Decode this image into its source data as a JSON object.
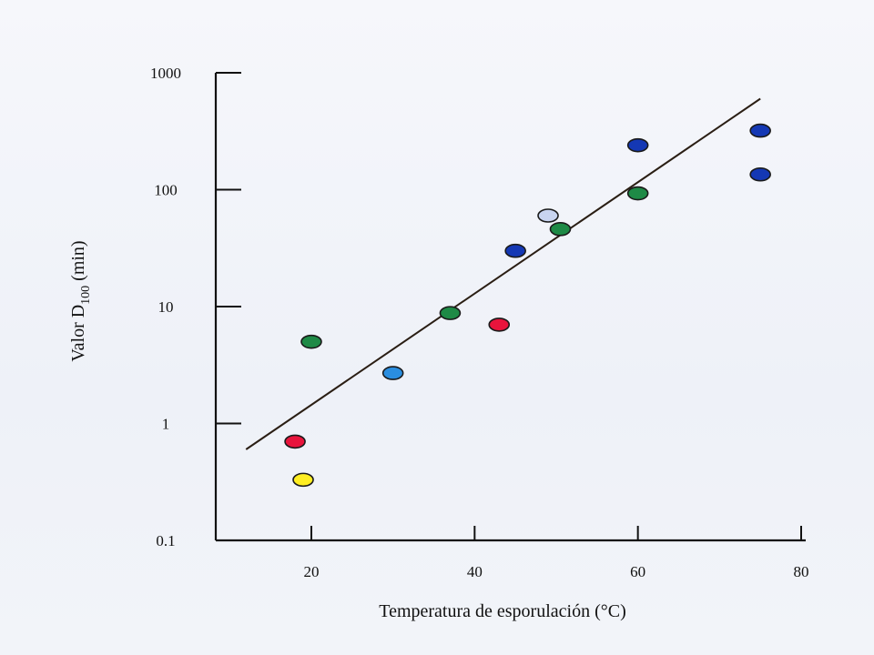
{
  "chart_data": {
    "type": "scatter",
    "title": "",
    "xlabel": "Temperatura de esporulación (°C)",
    "ylabel": {
      "main": "Valor D",
      "subscript": "100",
      "suffix": " (min)"
    },
    "xlim": [
      8,
      80
    ],
    "ylim": [
      0.1,
      1000
    ],
    "y_scale": "log",
    "grid": false,
    "x_ticks": [
      {
        "value": 20,
        "label": "20"
      },
      {
        "value": 40,
        "label": "40"
      },
      {
        "value": 60,
        "label": "60"
      },
      {
        "value": 80,
        "label": "80"
      }
    ],
    "y_ticks": [
      {
        "value": 0.1,
        "label": "0.1"
      },
      {
        "value": 1,
        "label": "1"
      },
      {
        "value": 10,
        "label": "10"
      },
      {
        "value": 100,
        "label": "100"
      },
      {
        "value": 1000,
        "label": "1000"
      }
    ],
    "points": [
      {
        "x": 18.0,
        "y": 0.7,
        "color": "#e8143c"
      },
      {
        "x": 19.0,
        "y": 0.33,
        "color": "#ffee22"
      },
      {
        "x": 20.0,
        "y": 5.0,
        "color": "#1e8a46"
      },
      {
        "x": 30.0,
        "y": 2.7,
        "color": "#2a8ee0"
      },
      {
        "x": 37.0,
        "y": 8.8,
        "color": "#1e8a46"
      },
      {
        "x": 43.0,
        "y": 7.0,
        "color": "#e8143c"
      },
      {
        "x": 45.0,
        "y": 30,
        "color": "#1438b4"
      },
      {
        "x": 49.0,
        "y": 60,
        "color": "#c8d4f0"
      },
      {
        "x": 50.5,
        "y": 46,
        "color": "#1e8a46"
      },
      {
        "x": 60.0,
        "y": 240,
        "color": "#1438b4"
      },
      {
        "x": 60.0,
        "y": 93,
        "color": "#1e8a46"
      },
      {
        "x": 75.0,
        "y": 320,
        "color": "#1438b4"
      },
      {
        "x": 75.0,
        "y": 135,
        "color": "#1438b4"
      }
    ],
    "trend_line": {
      "x": [
        12,
        75
      ],
      "y": [
        0.6,
        600
      ],
      "color": "#2a1e14"
    }
  }
}
